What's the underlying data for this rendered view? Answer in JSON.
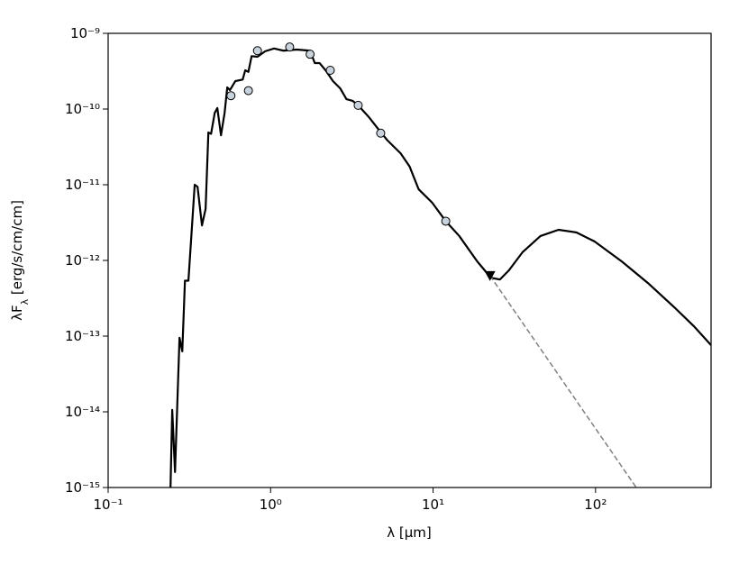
{
  "chart_data": {
    "type": "line",
    "xlabel": "λ [μm]",
    "ylabel": {
      "main": "λF",
      "sub": "λ",
      "unit": " [erg/s/cm/cm]"
    },
    "xscale": "log",
    "yscale": "log",
    "xlim": [
      0.1,
      514
    ],
    "ylim": [
      1e-15,
      1e-09
    ],
    "xticks": [
      {
        "value": 0.1,
        "label": "10⁻¹"
      },
      {
        "value": 1,
        "label": "10⁰"
      },
      {
        "value": 10,
        "label": "10¹"
      },
      {
        "value": 100,
        "label": "10²"
      }
    ],
    "yticks": [
      {
        "value": 1e-15,
        "label": "10⁻¹⁵"
      },
      {
        "value": 1e-14,
        "label": "10⁻¹⁴"
      },
      {
        "value": 1e-13,
        "label": "10⁻¹³"
      },
      {
        "value": 1e-12,
        "label": "10⁻¹²"
      },
      {
        "value": 1e-11,
        "label": "10⁻¹¹"
      },
      {
        "value": 1e-10,
        "label": "10⁻¹⁰"
      },
      {
        "value": 1e-09,
        "label": "10⁻⁹"
      }
    ],
    "series": [
      {
        "type": "line",
        "color": "#000000",
        "dash": false,
        "x": [
          0.242,
          0.248,
          0.258,
          0.275,
          0.286,
          0.297,
          0.312,
          0.341,
          0.355,
          0.378,
          0.398,
          0.414,
          0.43,
          0.453,
          0.47,
          0.495,
          0.521,
          0.541,
          0.562,
          0.607,
          0.673,
          0.698,
          0.73,
          0.764,
          0.83,
          0.926,
          1.05,
          1.2,
          1.45,
          1.75,
          1.87,
          2.0,
          2.18,
          2.42,
          2.68,
          2.93,
          3.2,
          3.46,
          4.03,
          4.58,
          5.21,
          6.31,
          7.17,
          8.15,
          9.87,
          11.97,
          14.5,
          18.7,
          22.7,
          25.8,
          29.3,
          35.5,
          45.8,
          59.2,
          76.4,
          98.7,
          145,
          213,
          312,
          403,
          514
        ],
        "values": [
          1e-15,
          1.06e-14,
          1.6e-15,
          9.5e-14,
          6.3e-14,
          5.4e-13,
          5.4e-13,
          1e-11,
          9.4e-12,
          2.9e-12,
          4.8e-12,
          4.9e-11,
          4.7e-11,
          8.9e-11,
          1.03e-10,
          4.5e-11,
          8.9e-11,
          1.93e-10,
          1.78e-10,
          2.34e-10,
          2.45e-10,
          3.25e-10,
          3.1e-10,
          5e-10,
          4.9e-10,
          5.8e-10,
          6.3e-10,
          5.9e-10,
          6.1e-10,
          5.9e-10,
          4.05e-10,
          4.05e-10,
          3.25e-10,
          2.34e-10,
          1.88e-10,
          1.35e-10,
          1.28e-10,
          1.12e-10,
          7.8e-11,
          5.5e-11,
          3.9e-11,
          2.6e-11,
          1.74e-11,
          8.7e-12,
          5.8e-12,
          3.3e-12,
          2.1e-12,
          9.7e-13,
          5.9e-13,
          5.6e-13,
          7.4e-13,
          1.28e-12,
          2.1e-12,
          2.54e-12,
          2.34e-12,
          1.78e-12,
          9.7e-13,
          4.9e-13,
          2.3e-13,
          1.35e-13,
          7.6e-14
        ]
      },
      {
        "type": "line",
        "color": "#808080",
        "dash": true,
        "x": [
          22.4,
          178
        ],
        "values": [
          6.3e-13,
          1e-15
        ]
      },
      {
        "type": "scatter",
        "color": "#c8d2dc",
        "x": [
          0.57,
          0.73,
          0.83,
          1.31,
          1.75,
          2.33,
          3.46,
          4.76,
          11.97
        ],
        "values": [
          1.5e-10,
          1.75e-10,
          5.9e-10,
          6.6e-10,
          5.3e-10,
          3.25e-10,
          1.12e-10,
          4.8e-11,
          3.3e-12
        ]
      },
      {
        "type": "upper-limit",
        "color": "#000000",
        "x": [
          22.4
        ],
        "values": [
          6.3e-13
        ]
      }
    ]
  }
}
